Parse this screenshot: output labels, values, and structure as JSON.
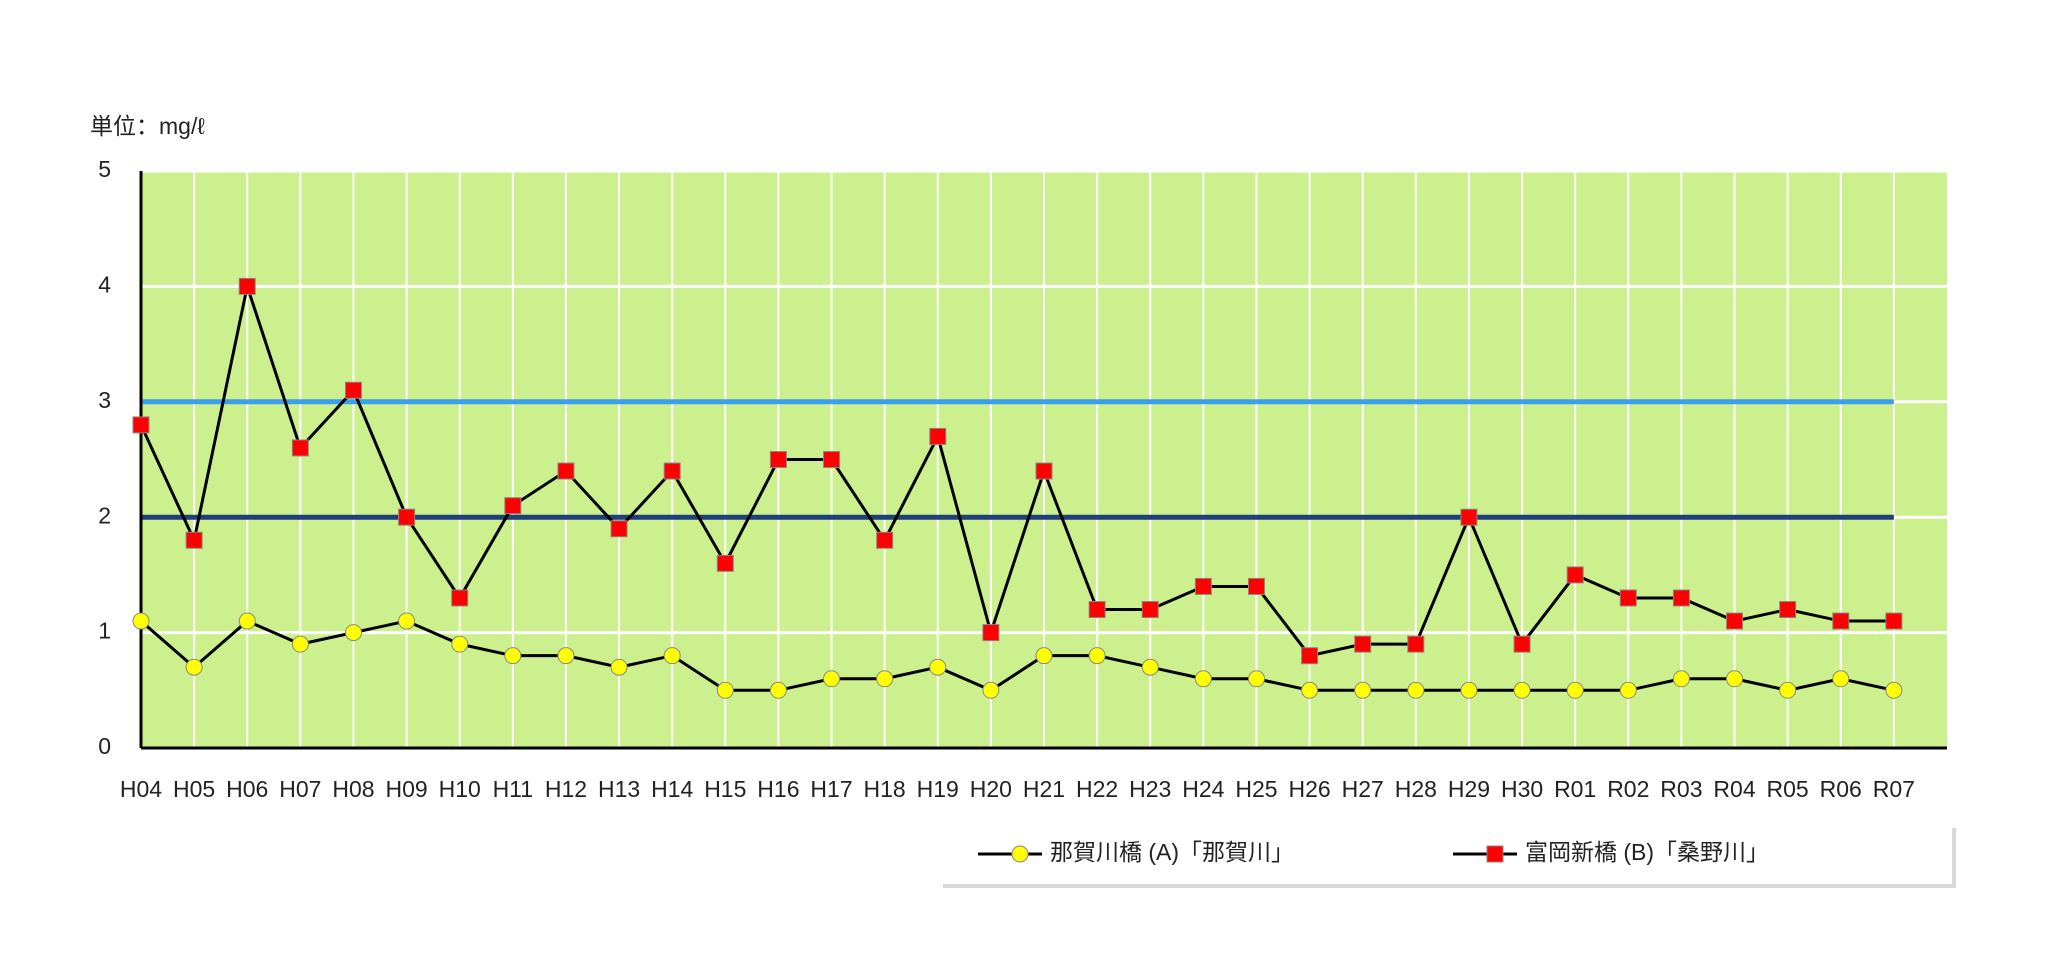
{
  "chart_data": {
    "type": "line",
    "y_label": "単位：mg/ℓ",
    "categories": [
      "H04",
      "H05",
      "H06",
      "H07",
      "H08",
      "H09",
      "H10",
      "H11",
      "H12",
      "H13",
      "H14",
      "H15",
      "H16",
      "H17",
      "H18",
      "H19",
      "H20",
      "H21",
      "H22",
      "H23",
      "H24",
      "H25",
      "H26",
      "H27",
      "H28",
      "H29",
      "H30",
      "R01",
      "R02",
      "R03",
      "R04",
      "R05",
      "R06",
      "R07"
    ],
    "series": [
      {
        "name": "那賀川橋 (A)「那賀川」",
        "color": "#ffff00",
        "marker": "circle",
        "values": [
          1.1,
          0.7,
          1.1,
          0.9,
          1.0,
          1.1,
          0.9,
          0.8,
          0.8,
          0.7,
          0.8,
          0.5,
          0.5,
          0.6,
          0.6,
          0.7,
          0.5,
          0.8,
          0.8,
          0.7,
          0.6,
          0.6,
          0.5,
          0.5,
          0.5,
          0.5,
          0.5,
          0.5,
          0.5,
          0.6,
          0.6,
          0.5,
          0.6,
          0.5
        ]
      },
      {
        "name": "富岡新橋 (B)「桑野川」",
        "color": "#ff0000",
        "marker": "square",
        "values": [
          2.8,
          1.8,
          4.0,
          2.6,
          3.1,
          2.0,
          1.3,
          2.1,
          2.4,
          1.9,
          2.4,
          1.6,
          2.5,
          2.5,
          1.8,
          2.7,
          1.0,
          2.4,
          1.2,
          1.2,
          1.4,
          1.4,
          0.8,
          0.9,
          0.9,
          2.0,
          0.9,
          1.5,
          1.3,
          1.3,
          1.1,
          1.2,
          1.1,
          1.1
        ]
      }
    ],
    "reference_lines": [
      {
        "value": 3,
        "color": "#3aa0ee"
      },
      {
        "value": 2,
        "color": "#1f3f7a"
      }
    ],
    "ylim": [
      0,
      5
    ],
    "yticks": [
      0,
      1,
      2,
      3,
      4,
      5
    ],
    "grid": true,
    "plot_color": "#ccf08e"
  }
}
